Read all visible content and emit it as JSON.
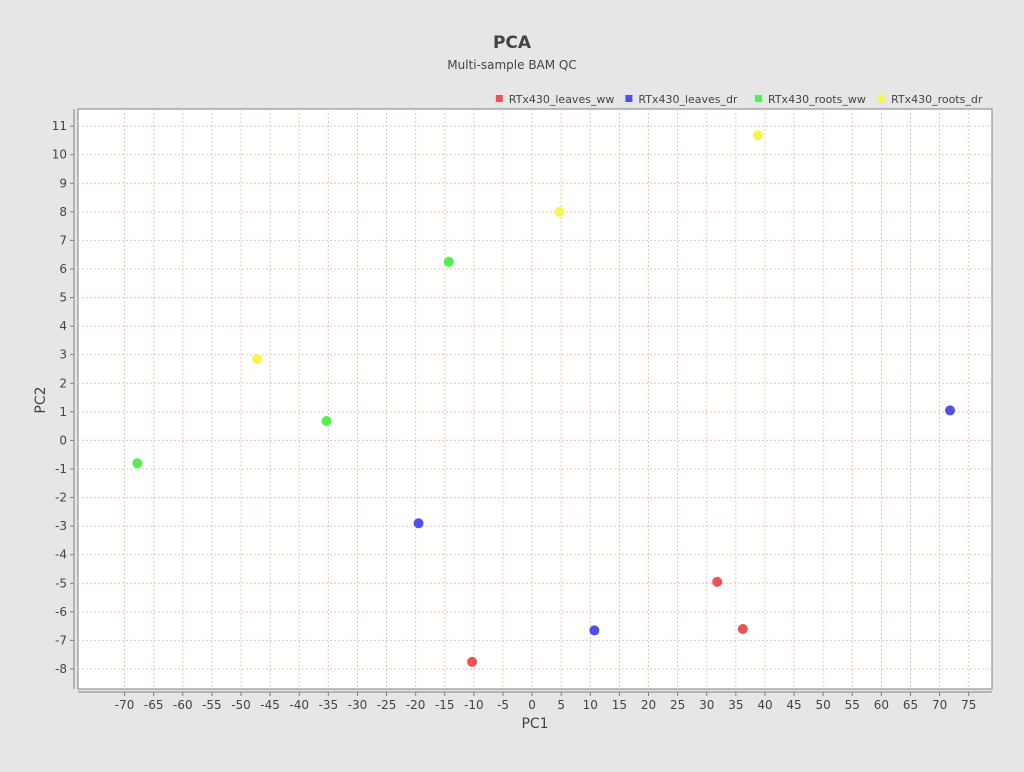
{
  "chart_data": {
    "type": "scatter",
    "title": "PCA",
    "subtitle": "Multi-sample BAM QC",
    "xlabel": "PC1",
    "ylabel": "PC2",
    "xlim": [
      -78,
      79
    ],
    "ylim": [
      -8.7,
      11.6
    ],
    "xticks": [
      -70,
      -65,
      -60,
      -55,
      -50,
      -45,
      -40,
      -35,
      -30,
      -25,
      -20,
      -15,
      -10,
      -5,
      0,
      5,
      10,
      15,
      20,
      25,
      30,
      35,
      40,
      45,
      50,
      55,
      60,
      65,
      70,
      75
    ],
    "yticks": [
      -8,
      -7,
      -6,
      -5,
      -4,
      -3,
      -2,
      -1,
      0,
      1,
      2,
      3,
      4,
      5,
      6,
      7,
      8,
      9,
      10,
      11
    ],
    "grid": true,
    "legend_position": "top-right",
    "series": [
      {
        "name": "RTx430_leaves_ww",
        "color": "#f05050",
        "points": [
          {
            "x": -10.3,
            "y": -7.75
          },
          {
            "x": 31.8,
            "y": -4.95
          },
          {
            "x": 36.2,
            "y": -6.6
          }
        ]
      },
      {
        "name": "RTx430_leaves_dr",
        "color": "#5050f0",
        "points": [
          {
            "x": -19.5,
            "y": -2.9
          },
          {
            "x": 10.7,
            "y": -6.65
          },
          {
            "x": 71.8,
            "y": 1.05
          }
        ]
      },
      {
        "name": "RTx430_roots_ww",
        "color": "#50f050",
        "points": [
          {
            "x": -67.8,
            "y": -0.8
          },
          {
            "x": -35.3,
            "y": 0.68
          },
          {
            "x": -14.3,
            "y": 6.25
          }
        ]
      },
      {
        "name": "RTx430_roots_dr",
        "color": "#f5f54a",
        "points": [
          {
            "x": -47.2,
            "y": 2.85
          },
          {
            "x": 4.7,
            "y": 8.0
          },
          {
            "x": 38.8,
            "y": 10.68
          }
        ]
      }
    ]
  }
}
